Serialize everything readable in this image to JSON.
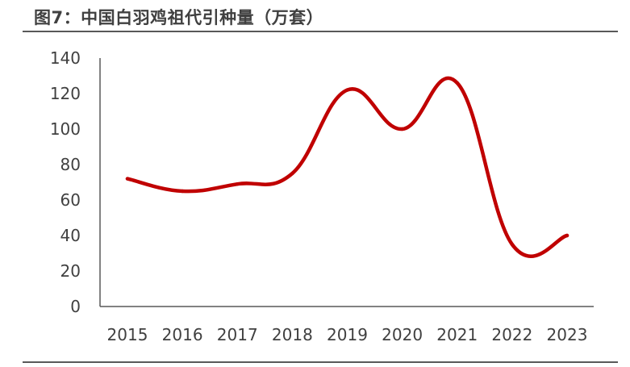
{
  "figure_title": "图7：中国白羽鸡祖代引种量（万套）",
  "colors": {
    "line": "#C00000",
    "axis": "#595959",
    "text": "#404040",
    "rule": "#595959"
  },
  "chart_data": {
    "type": "line",
    "title": "",
    "xlabel": "",
    "ylabel": "",
    "categories": [
      "2015",
      "2016",
      "2017",
      "2018",
      "2019",
      "2020",
      "2021",
      "2022",
      "2023"
    ],
    "series": [
      {
        "values": [
          72,
          65,
          69,
          75,
          122,
          100,
          126,
          35,
          40
        ]
      }
    ],
    "ylim": [
      0,
      140
    ],
    "yticks": [
      "0",
      "20",
      "40",
      "60",
      "80",
      "100",
      "120",
      "140"
    ],
    "grid": false,
    "legend": "none",
    "smooth": true
  }
}
